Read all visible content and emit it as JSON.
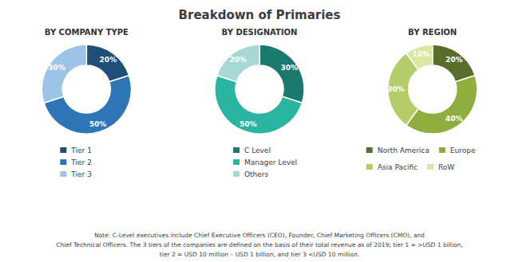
{
  "title": "Breakdown of Primaries",
  "note": "Note: C-Level executives include Chief Executive Officers (CEO), Founder, Chief Marketing Officers (CMO), and\nChief Technical Officers. The 3 tiers of the companies are defined on the basis of their total revenue as of 2019; tier 1 = >USD 1 billion,\ntier 2 = USD 10 million – USD 1 billion, and tier 3 <USD 10 million.",
  "chart_data": [
    {
      "type": "pie",
      "title": "BY COMPANY TYPE",
      "categories": [
        "Tier 1",
        "Tier 2",
        "Tier 3"
      ],
      "values": [
        20,
        50,
        30
      ],
      "value_labels": [
        "20%",
        "50%",
        "30%"
      ],
      "colors": [
        "#1f4e79",
        "#2e75b6",
        "#9dc3e6"
      ],
      "data_labels": true,
      "legend": "bottom"
    },
    {
      "type": "pie",
      "title": "BY DESIGNATION",
      "categories": [
        "C Level",
        "Manager Level",
        "Others"
      ],
      "values": [
        30,
        50,
        20
      ],
      "value_labels": [
        "30%",
        "50%",
        "20%"
      ],
      "colors": [
        "#1a7a6e",
        "#2ab5a0",
        "#a8d8d4"
      ],
      "data_labels": true,
      "legend": "bottom"
    },
    {
      "type": "pie",
      "title": "BY REGION",
      "categories": [
        "North America",
        "Europe",
        "Asia Pacific",
        "RoW"
      ],
      "values": [
        20,
        40,
        30,
        10
      ],
      "value_labels": [
        "20%",
        "40%",
        "30%",
        "10%"
      ],
      "colors": [
        "#5a6e2c",
        "#8fae3e",
        "#b5cc6b",
        "#d9e8a0"
      ],
      "data_labels": true,
      "legend": "bottom"
    }
  ]
}
